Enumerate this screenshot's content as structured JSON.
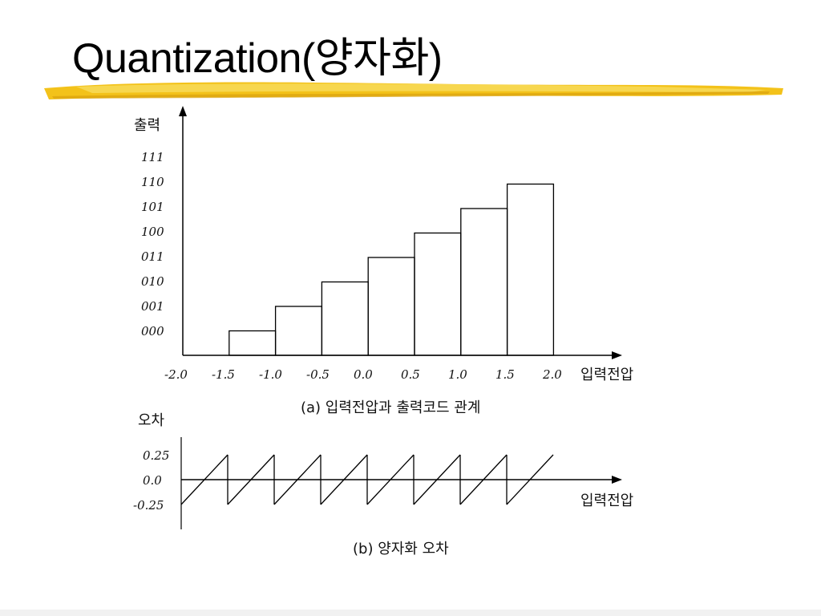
{
  "slide": {
    "title": "Quantization(양자화)",
    "underline_color": "#f3c21a"
  },
  "chart_data": [
    {
      "type": "bar",
      "categories": [
        "-1.5",
        "-1.0",
        "-0.5",
        "0.0",
        "0.5",
        "1.0",
        "1.5"
      ],
      "values": [
        "000",
        "001",
        "010",
        "011",
        "100",
        "101",
        "110"
      ],
      "ylabel": "출력",
      "xlabel": "입력전압",
      "x_ticks": [
        "-2.0",
        "-1.5",
        "-1.0",
        "-0.5",
        "0.0",
        "0.5",
        "1.0",
        "1.5",
        "2.0"
      ],
      "y_ticks": [
        "000",
        "001",
        "010",
        "011",
        "100",
        "101",
        "110",
        "111"
      ],
      "caption": "(a) 입력전압과 출력코드 관계"
    },
    {
      "type": "line",
      "ylabel": "오차",
      "xlabel": "입력전압",
      "y_ticks": [
        "0.25",
        "0.0",
        "-0.25"
      ],
      "caption": "(b) 양자화 오차",
      "teeth": 8,
      "segments": [
        {
          "x": [
            -2.0,
            -1.5
          ],
          "y": [
            -0.25,
            0.25
          ]
        },
        {
          "x": [
            -1.5,
            -1.0
          ],
          "y": [
            -0.25,
            0.25
          ]
        },
        {
          "x": [
            -1.0,
            -0.5
          ],
          "y": [
            -0.25,
            0.25
          ]
        },
        {
          "x": [
            -0.5,
            0.0
          ],
          "y": [
            -0.25,
            0.25
          ]
        },
        {
          "x": [
            0.0,
            0.5
          ],
          "y": [
            -0.25,
            0.25
          ]
        },
        {
          "x": [
            0.5,
            1.0
          ],
          "y": [
            -0.25,
            0.25
          ]
        },
        {
          "x": [
            1.0,
            1.5
          ],
          "y": [
            -0.25,
            0.25
          ]
        },
        {
          "x": [
            1.5,
            2.0
          ],
          "y": [
            -0.25,
            0.25
          ]
        }
      ]
    }
  ]
}
